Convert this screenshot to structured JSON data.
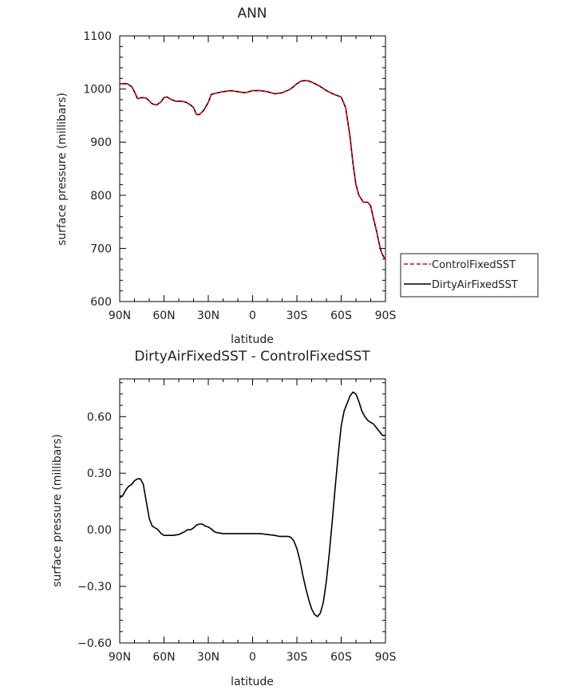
{
  "chart_data": [
    {
      "type": "line",
      "title": "ANN",
      "xlabel": "latitude",
      "ylabel": "surface pressure (millibars)",
      "xlim": [
        90,
        -90
      ],
      "ylim": [
        600,
        1100
      ],
      "x_ticks": [
        90,
        60,
        30,
        0,
        -30,
        -60,
        -90
      ],
      "x_tick_labels": [
        "90N",
        "60N",
        "30N",
        "0",
        "30S",
        "60S",
        "90S"
      ],
      "y_ticks": [
        600,
        700,
        800,
        900,
        1000,
        1100
      ],
      "y_tick_labels": [
        "600",
        "700",
        "800",
        "900",
        "1000",
        "1100"
      ],
      "legend": {
        "placement": "right",
        "entries": [
          "ControlFixedSST",
          "DirtyAirFixedSST"
        ]
      },
      "series": [
        {
          "name": "ControlFixedSST",
          "color": "#e8000b",
          "dash": "dashed",
          "x": [
            90,
            85,
            82,
            80,
            78,
            75,
            72,
            68,
            65,
            62,
            60,
            58,
            55,
            52,
            48,
            45,
            42,
            40,
            38,
            36,
            33,
            30,
            28,
            25,
            20,
            15,
            10,
            5,
            0,
            -5,
            -10,
            -15,
            -20,
            -25,
            -28,
            -30,
            -33,
            -36,
            -38,
            -40,
            -45,
            -50,
            -55,
            -58,
            -60,
            -63,
            -66,
            -68,
            -70,
            -72,
            -75,
            -78,
            -80,
            -82,
            -84,
            -85,
            -86,
            -87,
            -88,
            -89,
            -90
          ],
          "y": [
            1010,
            1010,
            1005,
            995,
            982,
            984,
            983,
            972,
            970,
            976,
            984,
            985,
            980,
            977,
            977,
            975,
            970,
            965,
            952,
            952,
            960,
            975,
            990,
            992,
            995,
            997,
            995,
            993,
            997,
            997,
            995,
            991,
            993,
            999,
            1005,
            1010,
            1015,
            1016,
            1015,
            1013,
            1006,
            997,
            990,
            987,
            985,
            965,
            910,
            860,
            820,
            800,
            787,
            787,
            780,
            755,
            732,
            718,
            706,
            695,
            688,
            683,
            680
          ]
        },
        {
          "name": "DirtyAirFixedSST",
          "color": "#000000",
          "dash": "solid",
          "x": [
            90,
            85,
            82,
            80,
            78,
            75,
            72,
            68,
            65,
            62,
            60,
            58,
            55,
            52,
            48,
            45,
            42,
            40,
            38,
            36,
            33,
            30,
            28,
            25,
            20,
            15,
            10,
            5,
            0,
            -5,
            -10,
            -15,
            -20,
            -25,
            -28,
            -30,
            -33,
            -36,
            -38,
            -40,
            -45,
            -50,
            -55,
            -58,
            -60,
            -63,
            -66,
            -68,
            -70,
            -72,
            -75,
            -78,
            -80,
            -82,
            -84,
            -85,
            -86,
            -87,
            -88,
            -89,
            -90
          ],
          "y": [
            1010,
            1010,
            1005,
            995,
            982,
            984,
            983,
            972,
            970,
            976,
            984,
            985,
            980,
            977,
            977,
            975,
            970,
            965,
            952,
            952,
            960,
            975,
            990,
            992,
            995,
            997,
            995,
            993,
            997,
            997,
            995,
            991,
            993,
            999,
            1005,
            1010,
            1015,
            1016,
            1015,
            1013,
            1006,
            997,
            990,
            987,
            985,
            965,
            910,
            860,
            820,
            800,
            787,
            787,
            780,
            755,
            732,
            718,
            706,
            695,
            688,
            683,
            680
          ]
        }
      ]
    },
    {
      "type": "line",
      "title": "DirtyAirFixedSST - ControlFixedSST",
      "xlabel": "latitude",
      "ylabel": "surface pressure (millibars)",
      "xlim": [
        90,
        -90
      ],
      "ylim": [
        -0.6,
        0.8
      ],
      "x_ticks": [
        90,
        60,
        30,
        0,
        -30,
        -60,
        -90
      ],
      "x_tick_labels": [
        "90N",
        "60N",
        "30N",
        "0",
        "30S",
        "60S",
        "90S"
      ],
      "y_ticks": [
        -0.6,
        -0.3,
        0.0,
        0.3,
        0.6
      ],
      "y_tick_labels": [
        "−0.60",
        "−0.30",
        "0.00",
        "0.30",
        "0.60"
      ],
      "series": [
        {
          "color": "#000000",
          "dash": "solid",
          "x": [
            90,
            88,
            86,
            84,
            82,
            80,
            78,
            76,
            74,
            72,
            70,
            68,
            66,
            64,
            62,
            60,
            58,
            56,
            54,
            50,
            46,
            44,
            42,
            40,
            38,
            36,
            34,
            32,
            30,
            28,
            26,
            24,
            20,
            15,
            10,
            5,
            0,
            -5,
            -10,
            -15,
            -18,
            -20,
            -22,
            -24,
            -26,
            -28,
            -30,
            -32,
            -34,
            -36,
            -38,
            -40,
            -42,
            -44,
            -46,
            -48,
            -50,
            -52,
            -54,
            -56,
            -58,
            -60,
            -62,
            -64,
            -66,
            -68,
            -70,
            -72,
            -74,
            -76,
            -78,
            -80,
            -82,
            -84,
            -86,
            -88,
            -90
          ],
          "y": [
            0.17,
            0.18,
            0.21,
            0.23,
            0.24,
            0.26,
            0.27,
            0.27,
            0.24,
            0.15,
            0.06,
            0.02,
            0.01,
            0.0,
            -0.02,
            -0.03,
            -0.03,
            -0.03,
            -0.03,
            -0.025,
            -0.01,
            0.0,
            0.0,
            0.01,
            0.025,
            0.03,
            0.03,
            0.02,
            0.015,
            0.005,
            -0.01,
            -0.015,
            -0.02,
            -0.02,
            -0.02,
            -0.02,
            -0.02,
            -0.02,
            -0.025,
            -0.03,
            -0.035,
            -0.035,
            -0.035,
            -0.035,
            -0.04,
            -0.06,
            -0.1,
            -0.16,
            -0.24,
            -0.31,
            -0.37,
            -0.42,
            -0.45,
            -0.46,
            -0.44,
            -0.38,
            -0.27,
            -0.12,
            0.05,
            0.23,
            0.4,
            0.55,
            0.63,
            0.67,
            0.71,
            0.73,
            0.72,
            0.68,
            0.63,
            0.6,
            0.58,
            0.57,
            0.56,
            0.54,
            0.52,
            0.5,
            0.5
          ]
        }
      ]
    }
  ]
}
